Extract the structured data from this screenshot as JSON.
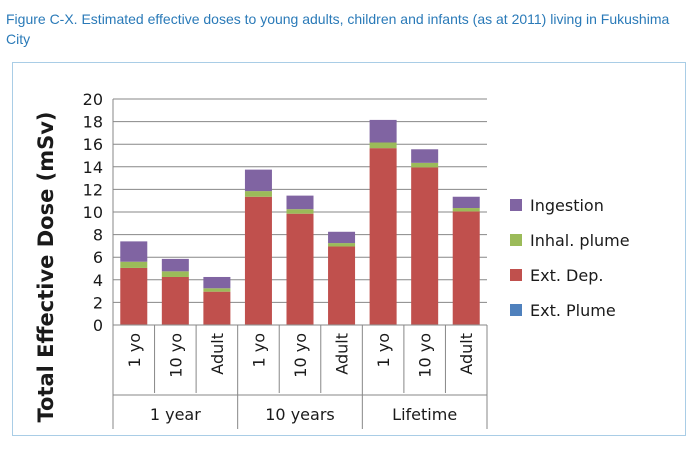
{
  "caption": {
    "text": "Figure C-X. Estimated effective doses to young adults, children and infants (as at 2011) living in Fukushima City"
  },
  "chart_data": {
    "type": "bar",
    "stacked": true,
    "title": "",
    "xlabel": "",
    "ylabel": "Total Effective Dose (mSv)",
    "ylim": [
      0,
      20
    ],
    "yticks": [
      0,
      2,
      4,
      6,
      8,
      10,
      12,
      14,
      16,
      18,
      20
    ],
    "grid": true,
    "legend_position": "right",
    "groups": [
      {
        "label": "1 year",
        "categories": [
          "1 yo",
          "10 yo",
          "Adult"
        ]
      },
      {
        "label": "10 years",
        "categories": [
          "1 yo",
          "10 yo",
          "Adult"
        ]
      },
      {
        "label": "Lifetime",
        "categories": [
          "1 yo",
          "10 yo",
          "Adult"
        ]
      }
    ],
    "categories": [
      "1 yo",
      "10 yo",
      "Adult",
      "1 yo",
      "10 yo",
      "Adult",
      "1 yo",
      "10 yo",
      "Adult"
    ],
    "series": [
      {
        "name": "Ext. Plume",
        "color": "#4f81bd",
        "values": [
          0.05,
          0.05,
          0.05,
          0.05,
          0.05,
          0.05,
          0.05,
          0.05,
          0.05
        ]
      },
      {
        "name": "Ext. Dep.",
        "color": "#c0504d",
        "values": [
          5.0,
          4.2,
          2.9,
          11.3,
          9.8,
          6.9,
          15.6,
          13.9,
          10.0
        ]
      },
      {
        "name": "Inhal. plume",
        "color": "#9bbb59",
        "values": [
          0.55,
          0.5,
          0.3,
          0.5,
          0.4,
          0.3,
          0.5,
          0.4,
          0.3
        ]
      },
      {
        "name": "Ingestion",
        "color": "#8064a2",
        "values": [
          1.8,
          1.1,
          1.0,
          1.9,
          1.2,
          1.0,
          2.0,
          1.2,
          1.0
        ]
      }
    ],
    "legend_order": [
      "Ingestion",
      "Inhal. plume",
      "Ext. Dep.",
      "Ext. Plume"
    ]
  }
}
